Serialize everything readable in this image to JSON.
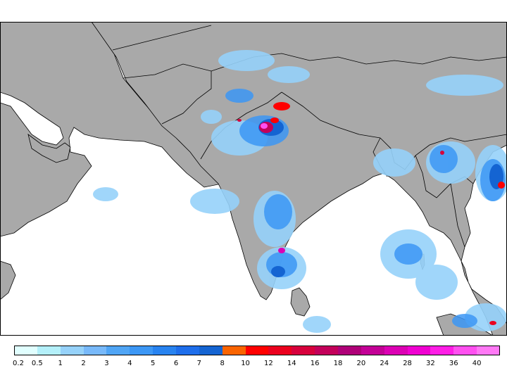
{
  "map": {
    "land_color": "#a9a9a9",
    "ocean_color": "#ffffff",
    "coastline_color": "#000000",
    "border_color": "#000000"
  },
  "legend": {
    "ticks": [
      "0.2",
      "0.5",
      "1",
      "2",
      "3",
      "4",
      "5",
      "6",
      "7",
      "8",
      "10",
      "12",
      "14",
      "16",
      "18",
      "20",
      "24",
      "28",
      "32",
      "36",
      "40"
    ],
    "colors": [
      "#e1ffff",
      "#b4f0fa",
      "#96d2fa",
      "#78b9fa",
      "#50a5f5",
      "#3c97f5",
      "#2883f0",
      "#1e6eeb",
      "#1464d2",
      "#fa6400",
      "#ff0000",
      "#eb001e",
      "#d7003c",
      "#c3005a",
      "#af0078",
      "#c30096",
      "#dc00b4",
      "#f000d2",
      "#ff1ee6",
      "#ff50f0",
      "#ff78f5"
    ]
  }
}
